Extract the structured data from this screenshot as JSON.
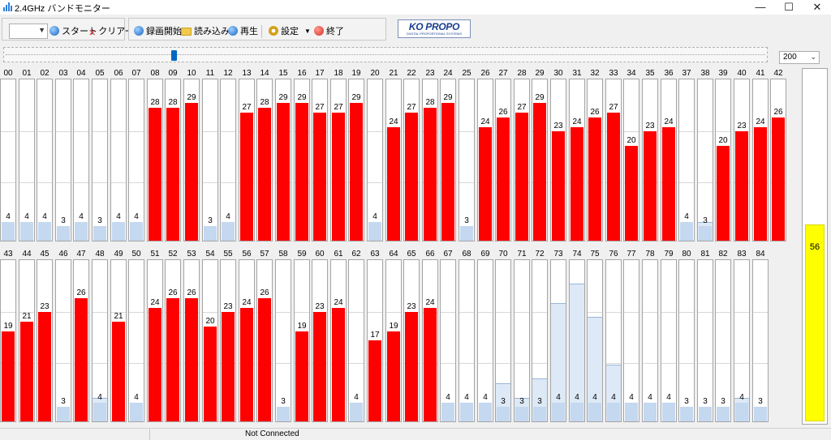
{
  "window": {
    "title": "2.4GHz バンドモニター",
    "controls": [
      "—",
      "☐",
      "✕"
    ]
  },
  "toolbar": {
    "start_label": "スタート",
    "clear_label": "クリアー",
    "record_label": "録画開始",
    "load_label": "読み込み",
    "play_label": "再生",
    "settings_label": "設定",
    "exit_label": "終了"
  },
  "logo": {
    "text": "KO PROPO",
    "subtext": "DIGITAL PROPORTIONAL SYSTEMS"
  },
  "zoom": {
    "value": "200"
  },
  "scale_max": 34,
  "slider_fraction": 0.22,
  "channels": [
    {
      "id": "00",
      "value": "4",
      "color": "blue"
    },
    {
      "id": "01",
      "value": "4",
      "color": "blue"
    },
    {
      "id": "02",
      "value": "4",
      "color": "blue"
    },
    {
      "id": "03",
      "value": "3",
      "color": "blue"
    },
    {
      "id": "04",
      "value": "4",
      "color": "blue"
    },
    {
      "id": "05",
      "value": "3",
      "color": "blue"
    },
    {
      "id": "06",
      "value": "4",
      "color": "blue"
    },
    {
      "id": "07",
      "value": "4",
      "color": "blue"
    },
    {
      "id": "08",
      "value": "28",
      "color": "red"
    },
    {
      "id": "09",
      "value": "28",
      "color": "red"
    },
    {
      "id": "10",
      "value": "29",
      "color": "red"
    },
    {
      "id": "11",
      "value": "3",
      "color": "blue"
    },
    {
      "id": "12",
      "value": "4",
      "color": "blue"
    },
    {
      "id": "13",
      "value": "27",
      "color": "red"
    },
    {
      "id": "14",
      "value": "28",
      "color": "red"
    },
    {
      "id": "15",
      "value": "29",
      "color": "red"
    },
    {
      "id": "16",
      "value": "29",
      "color": "red"
    },
    {
      "id": "17",
      "value": "27",
      "color": "red"
    },
    {
      "id": "18",
      "value": "27",
      "color": "red"
    },
    {
      "id": "19",
      "value": "29",
      "color": "red"
    },
    {
      "id": "20",
      "value": "4",
      "color": "blue"
    },
    {
      "id": "21",
      "value": "24",
      "color": "red"
    },
    {
      "id": "22",
      "value": "27",
      "color": "red"
    },
    {
      "id": "23",
      "value": "28",
      "color": "red"
    },
    {
      "id": "24",
      "value": "29",
      "color": "red"
    },
    {
      "id": "25",
      "value": "3",
      "color": "blue"
    },
    {
      "id": "26",
      "value": "24",
      "color": "red"
    },
    {
      "id": "27",
      "value": "26",
      "color": "red"
    },
    {
      "id": "28",
      "value": "27",
      "color": "red"
    },
    {
      "id": "29",
      "value": "29",
      "color": "red"
    },
    {
      "id": "30",
      "value": "23",
      "color": "red"
    },
    {
      "id": "31",
      "value": "24",
      "color": "red"
    },
    {
      "id": "32",
      "value": "26",
      "color": "red"
    },
    {
      "id": "33",
      "value": "27",
      "color": "red"
    },
    {
      "id": "34",
      "value": "20",
      "color": "red"
    },
    {
      "id": "35",
      "value": "23",
      "color": "red"
    },
    {
      "id": "36",
      "value": "24",
      "color": "red"
    },
    {
      "id": "37",
      "value": "4",
      "color": "blue"
    },
    {
      "id": "38",
      "value": "3",
      "color": "blue",
      "peak": 4
    },
    {
      "id": "39",
      "value": "20",
      "color": "red"
    },
    {
      "id": "40",
      "value": "23",
      "color": "red"
    },
    {
      "id": "41",
      "value": "24",
      "color": "red"
    },
    {
      "id": "42",
      "value": "26",
      "color": "red"
    },
    {
      "id": "43",
      "value": "19",
      "color": "red"
    },
    {
      "id": "44",
      "value": "21",
      "color": "red"
    },
    {
      "id": "45",
      "value": "23",
      "color": "red"
    },
    {
      "id": "46",
      "value": "3",
      "color": "blue"
    },
    {
      "id": "47",
      "value": "26",
      "color": "red"
    },
    {
      "id": "48",
      "value": "4",
      "color": "blue",
      "peak": 5
    },
    {
      "id": "49",
      "value": "21",
      "color": "red"
    },
    {
      "id": "50",
      "value": "4",
      "color": "blue"
    },
    {
      "id": "51",
      "value": "24",
      "color": "red"
    },
    {
      "id": "52",
      "value": "26",
      "color": "red"
    },
    {
      "id": "53",
      "value": "26",
      "color": "red"
    },
    {
      "id": "54",
      "value": "20",
      "color": "red"
    },
    {
      "id": "55",
      "value": "23",
      "color": "red"
    },
    {
      "id": "56",
      "value": "24",
      "color": "red"
    },
    {
      "id": "57",
      "value": "26",
      "color": "red"
    },
    {
      "id": "58",
      "value": "3",
      "color": "blue"
    },
    {
      "id": "59",
      "value": "19",
      "color": "red"
    },
    {
      "id": "60",
      "value": "23",
      "color": "red"
    },
    {
      "id": "61",
      "value": "24",
      "color": "red"
    },
    {
      "id": "62",
      "value": "4",
      "color": "blue"
    },
    {
      "id": "63",
      "value": "17",
      "color": "red"
    },
    {
      "id": "64",
      "value": "19",
      "color": "red"
    },
    {
      "id": "65",
      "value": "23",
      "color": "red"
    },
    {
      "id": "66",
      "value": "24",
      "color": "red"
    },
    {
      "id": "67",
      "value": "4",
      "color": "blue"
    },
    {
      "id": "68",
      "value": "4",
      "color": "blue"
    },
    {
      "id": "69",
      "value": "4",
      "color": "blue"
    },
    {
      "id": "70",
      "value": "3",
      "color": "blue",
      "peak": 8
    },
    {
      "id": "71",
      "value": "3",
      "color": "blue",
      "peak": 5
    },
    {
      "id": "72",
      "value": "3",
      "color": "blue",
      "peak": 9
    },
    {
      "id": "73",
      "value": "4",
      "color": "blue",
      "peak": 25
    },
    {
      "id": "74",
      "value": "4",
      "color": "blue",
      "peak": 29
    },
    {
      "id": "75",
      "value": "4",
      "color": "blue",
      "peak": 22
    },
    {
      "id": "76",
      "value": "4",
      "color": "blue",
      "peak": 12
    },
    {
      "id": "77",
      "value": "4",
      "color": "blue"
    },
    {
      "id": "78",
      "value": "4",
      "color": "blue"
    },
    {
      "id": "79",
      "value": "4",
      "color": "blue"
    },
    {
      "id": "80",
      "value": "3",
      "color": "blue"
    },
    {
      "id": "81",
      "value": "3",
      "color": "blue"
    },
    {
      "id": "82",
      "value": "3",
      "color": "blue"
    },
    {
      "id": "83",
      "value": "4",
      "color": "blue",
      "peak": 5
    },
    {
      "id": "84",
      "value": "3",
      "color": "blue"
    }
  ],
  "side_meter": {
    "value": "56",
    "fraction": 0.56
  },
  "status": {
    "text": "Not Connected"
  },
  "colors": {
    "bar_active": "#ff0000",
    "bar_idle": "#c4d8ef",
    "meter": "#ffff00"
  }
}
